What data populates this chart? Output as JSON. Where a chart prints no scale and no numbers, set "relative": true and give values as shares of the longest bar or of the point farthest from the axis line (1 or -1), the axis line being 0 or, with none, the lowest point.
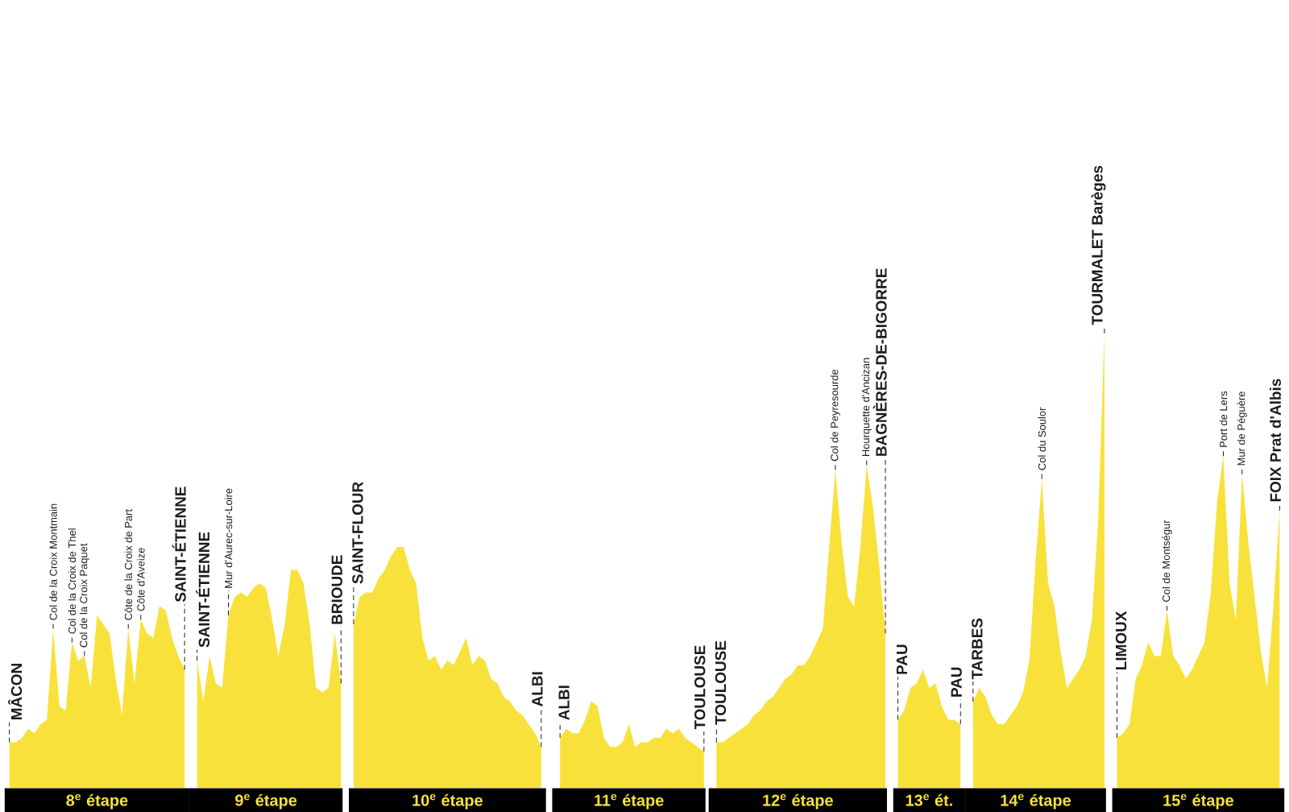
{
  "chart_data": {
    "type": "area",
    "relative": true,
    "color": "#f9e13b",
    "categories": [
      null,
      null,
      null,
      null,
      null,
      null,
      null,
      null,
      null,
      null,
      null,
      null,
      null,
      null,
      "8$^{e}$ étape",
      null,
      null,
      null,
      null,
      null,
      null,
      null,
      null,
      null,
      null,
      null,
      null,
      null,
      null,
      null,
      null,
      null,
      null,
      null,
      null,
      null,
      null,
      null,
      null,
      null,
      null,
      "9$^{e}$ étape",
      null,
      null,
      null,
      null,
      null,
      null,
      null,
      null,
      null,
      null,
      null,
      null,
      null,
      null,
      null,
      null,
      null,
      null,
      null,
      null,
      null,
      null,
      null,
      null,
      null,
      null,
      null,
      null,
      "10$^{e}$ étape",
      null,
      null,
      null,
      null,
      null,
      null,
      null,
      null,
      null,
      null,
      null,
      null,
      null,
      null,
      null,
      null,
      null,
      null,
      null,
      null,
      null,
      null,
      null,
      null,
      null,
      null,
      null,
      null,
      "11$^{e}$ étape",
      null,
      null,
      null,
      null,
      null,
      null,
      null,
      null,
      null,
      null,
      null,
      null,
      null,
      null,
      null,
      null,
      null,
      null,
      null,
      null,
      null,
      null,
      null,
      null,
      null,
      null,
      "12$^{e}$ étape",
      null,
      null,
      null,
      null,
      null,
      null,
      null,
      null,
      null,
      null,
      null,
      null,
      null,
      null,
      null,
      null,
      null,
      null,
      null,
      null,
      "13$^{e}$ ét.",
      null,
      null,
      null,
      null,
      null,
      null,
      null,
      null,
      null,
      null,
      null,
      null,
      null,
      null,
      null,
      null,
      "14$^{e}$ étape",
      null,
      null,
      null,
      null,
      null,
      null,
      null,
      null,
      null,
      null,
      null,
      null,
      null,
      null,
      null,
      null,
      null,
      null,
      null,
      null,
      null,
      null,
      null,
      null,
      null,
      "15$^{e}$ étape",
      null,
      null,
      null,
      null,
      null,
      null,
      null,
      null,
      null,
      null,
      null,
      null,
      null
    ],
    "values": [
      0.1,
      0.1,
      0.11,
      0.13,
      0.12,
      0.14,
      0.15,
      0.35,
      0.18,
      0.17,
      0.32,
      0.28,
      0.29,
      0.22,
      0.38,
      0.36,
      0.34,
      0.24,
      0.16,
      0.35,
      0.23,
      0.37,
      0.34,
      0.33,
      0.4,
      0.39,
      0.33,
      0.29,
      0.26,
      null,
      0.28,
      0.19,
      0.29,
      0.23,
      0.22,
      0.38,
      0.42,
      0.43,
      0.42,
      0.44,
      0.45,
      0.44,
      0.37,
      0.29,
      0.36,
      0.48,
      0.48,
      0.45,
      0.36,
      0.22,
      0.21,
      0.22,
      0.34,
      0.23,
      null,
      0.36,
      0.42,
      0.43,
      0.43,
      0.46,
      0.48,
      0.51,
      0.53,
      0.53,
      0.48,
      0.45,
      0.33,
      0.28,
      0.29,
      0.26,
      0.28,
      0.27,
      0.3,
      0.33,
      0.27,
      0.29,
      0.28,
      0.24,
      0.23,
      0.2,
      0.19,
      0.17,
      0.16,
      0.14,
      0.12,
      0.09,
      null,
      null,
      0.11,
      0.13,
      0.12,
      0.12,
      0.15,
      0.19,
      0.18,
      0.11,
      0.09,
      0.09,
      0.1,
      0.14,
      0.09,
      0.1,
      0.1,
      0.11,
      0.11,
      0.13,
      0.12,
      0.13,
      0.11,
      0.1,
      0.09,
      0.08,
      null,
      0.1,
      0.1,
      0.11,
      0.12,
      0.13,
      0.14,
      0.16,
      0.17,
      0.19,
      0.2,
      0.22,
      0.24,
      0.25,
      0.27,
      0.27,
      0.29,
      0.32,
      0.35,
      0.53,
      0.7,
      0.54,
      0.42,
      0.4,
      0.53,
      0.71,
      0.62,
      0.49,
      0.34,
      null,
      0.15,
      0.17,
      0.22,
      0.23,
      0.26,
      0.22,
      0.23,
      0.18,
      0.15,
      0.15,
      0.14,
      null,
      0.19,
      0.22,
      0.2,
      0.16,
      0.14,
      0.14,
      0.16,
      0.18,
      0.21,
      0.28,
      0.5,
      0.68,
      0.45,
      0.4,
      0.3,
      0.22,
      0.24,
      0.26,
      0.29,
      0.37,
      0.59,
      1.0,
      null,
      0.11,
      0.12,
      0.14,
      0.24,
      0.27,
      0.32,
      0.29,
      0.29,
      0.39,
      0.29,
      0.27,
      0.24,
      0.26,
      0.29,
      0.32,
      0.43,
      0.63,
      0.73,
      0.45,
      0.37,
      0.69,
      0.54,
      0.42,
      0.3,
      0.22,
      0.4,
      0.61
    ],
    "annotations": [
      {
        "text": "MÂCON",
        "y": 0.1
      },
      {
        "text": "Col de la Croix Montmain",
        "y": 0.35
      },
      {
        "text": "Col de la Croix de Thel",
        "y": 0.32
      },
      {
        "text": "Col de la Croix Paquet",
        "y": 0.29
      },
      {
        "text": "Côte de la Croix de Part",
        "y": 0.35
      },
      {
        "text": "Côte d'Aveize",
        "y": 0.37
      },
      {
        "text": "SAINT-ÉTIENNE",
        "y": 0.26
      },
      {
        "text": "SAINT-ÉTIENNE",
        "y": 0.28
      },
      {
        "text": "Mur d'Aurec-sur-Loire",
        "y": 0.38
      },
      {
        "text": "BRIOUDE",
        "y": 0.23
      },
      {
        "text": "SAINT-FLOUR",
        "y": 0.36
      },
      {
        "text": "ALBI",
        "y": 0.09
      },
      {
        "text": "ALBI",
        "y": 0.11
      },
      {
        "text": "TOULOUSE",
        "y": 0.08
      },
      {
        "text": "TOULOUSE",
        "y": 0.1
      },
      {
        "text": "Col de Peyresourde",
        "y": 0.7
      },
      {
        "text": "Hourquette d'Ancizan",
        "y": 0.71
      },
      {
        "text": "BAGNÈRES-DE-BIGORRE",
        "y": 0.34
      },
      {
        "text": "PAU",
        "y": 0.15
      },
      {
        "text": "PAU",
        "y": 0.14
      },
      {
        "text": "TARBES",
        "y": 0.19
      },
      {
        "text": "Col du Soulor",
        "y": 0.68
      },
      {
        "text": "TOURMALET Barèges",
        "y": 1.0
      },
      {
        "text": "LIMOUX",
        "y": 0.11
      },
      {
        "text": "Col de Montségur",
        "y": 0.39
      },
      {
        "text": "Port de Lers",
        "y": 0.73
      },
      {
        "text": "Mur de Péguère",
        "y": 0.69
      },
      {
        "text": "FOIX Prat d'Albis",
        "y": 0.61
      }
    ]
  }
}
